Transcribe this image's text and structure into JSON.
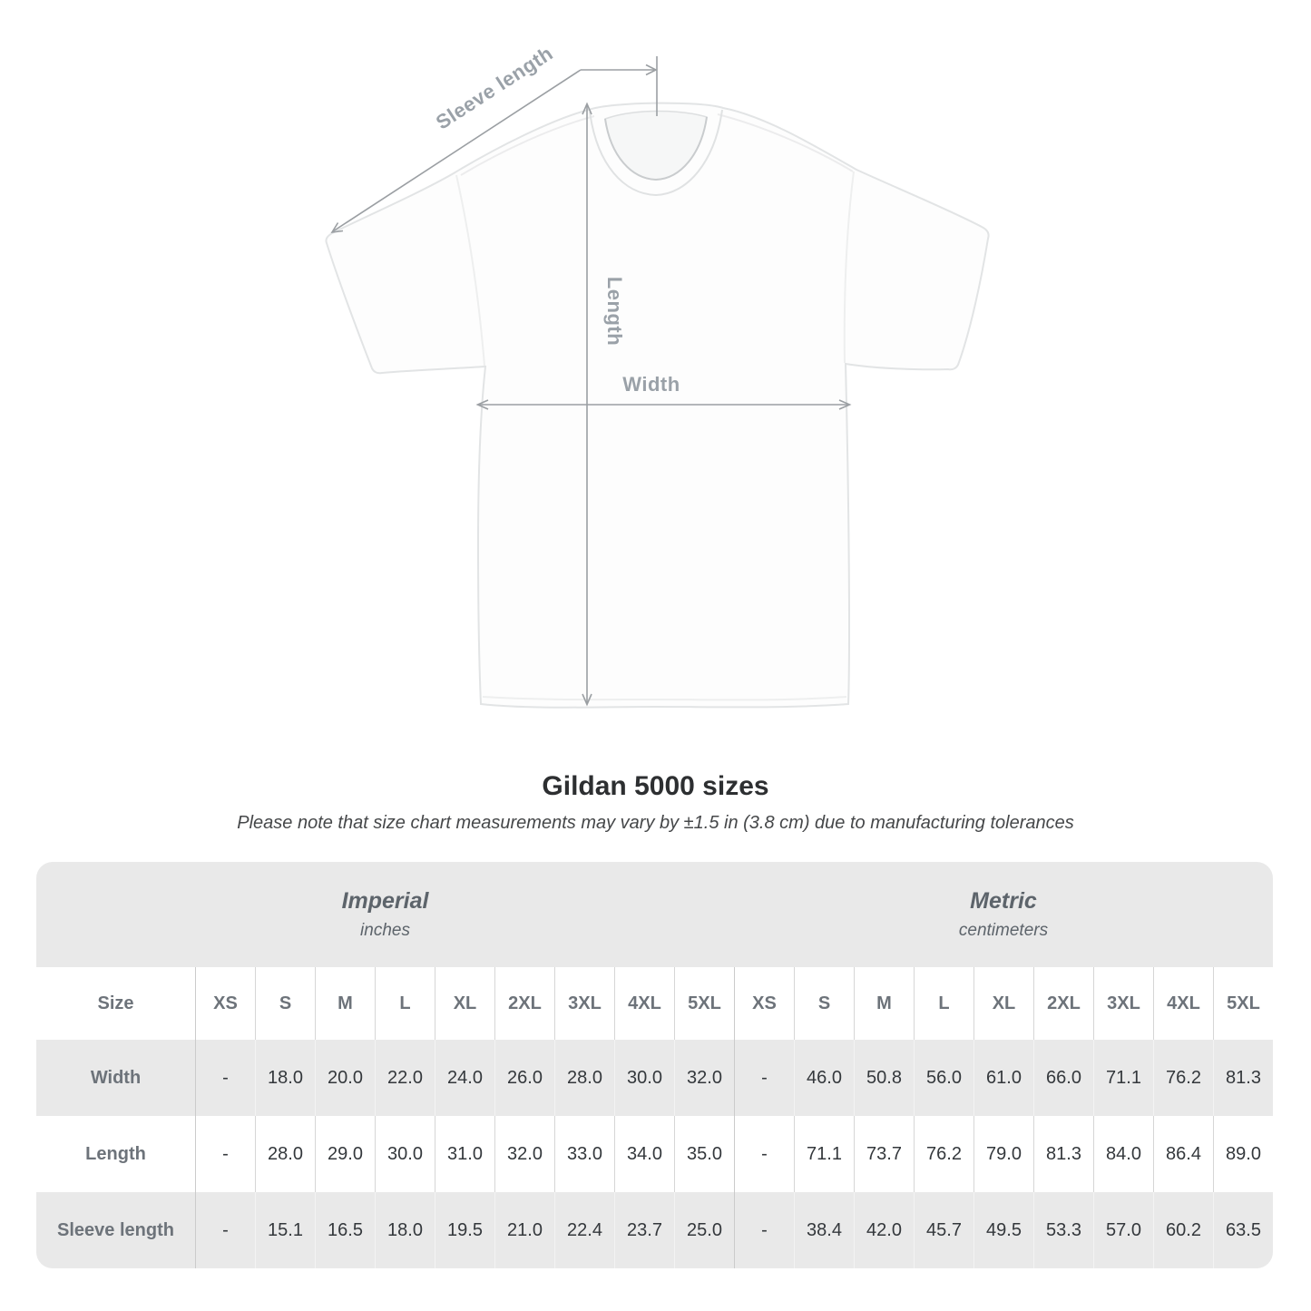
{
  "diagram": {
    "labels": {
      "sleeve_length": "Sleeve length",
      "length": "Length",
      "width": "Width"
    },
    "annotation_color": "#9aa1a8",
    "line_color": "#9b9fa3"
  },
  "title": "Gildan 5000 sizes",
  "subtitle": "Please note that size chart measurements may vary by ±1.5 in (3.8 cm) due to manufacturing tolerances",
  "table": {
    "size_label": "Size",
    "unit_groups": [
      {
        "name": "Imperial",
        "unit": "inches"
      },
      {
        "name": "Metric",
        "unit": "centimeters"
      }
    ],
    "sizes": [
      "XS",
      "S",
      "M",
      "L",
      "XL",
      "2XL",
      "3XL",
      "4XL",
      "5XL"
    ],
    "rows": [
      {
        "label": "Width",
        "imperial": [
          "-",
          "18.0",
          "20.0",
          "22.0",
          "24.0",
          "26.0",
          "28.0",
          "30.0",
          "32.0"
        ],
        "metric": [
          "-",
          "46.0",
          "50.8",
          "56.0",
          "61.0",
          "66.0",
          "71.1",
          "76.2",
          "81.3"
        ]
      },
      {
        "label": "Length",
        "imperial": [
          "-",
          "28.0",
          "29.0",
          "30.0",
          "31.0",
          "32.0",
          "33.0",
          "34.0",
          "35.0"
        ],
        "metric": [
          "-",
          "71.1",
          "73.7",
          "76.2",
          "79.0",
          "81.3",
          "84.0",
          "86.4",
          "89.0"
        ]
      },
      {
        "label": "Sleeve length",
        "imperial": [
          "-",
          "15.1",
          "16.5",
          "18.0",
          "19.5",
          "21.0",
          "22.4",
          "23.7",
          "25.0"
        ],
        "metric": [
          "-",
          "38.4",
          "42.0",
          "45.7",
          "49.5",
          "53.3",
          "57.0",
          "60.2",
          "63.5"
        ]
      }
    ]
  },
  "colors": {
    "stripe_gray": "#e9e9e9",
    "stripe_white": "#ffffff",
    "header_text": "#6d737a",
    "value_text": "#34383c",
    "title_text": "#2d2f31"
  }
}
